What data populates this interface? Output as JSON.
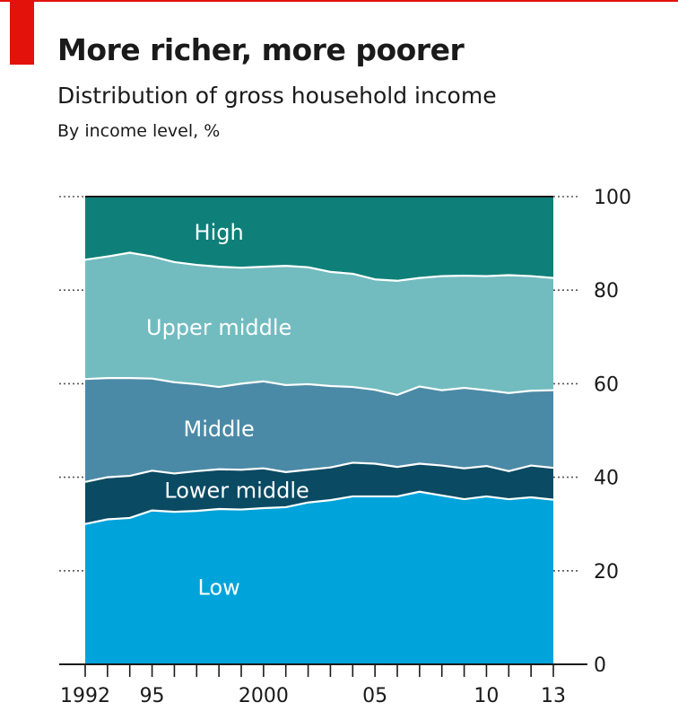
{
  "header": {
    "title": "More richer, more poorer",
    "subtitle": "Distribution of gross household income",
    "unit_note": "By income level, %"
  },
  "colors": {
    "accent_red": "#e3120b",
    "low": "#00a3da",
    "lower_middle": "#0a4a63",
    "middle": "#4b8aa6",
    "upper_middle": "#72bcc0",
    "high": "#0e8079"
  },
  "chart_data": {
    "type": "area",
    "stacked": true,
    "title": "More richer, more poorer",
    "subtitle": "Distribution of gross household income",
    "ylabel": "By income level, %",
    "ylim": [
      0,
      100
    ],
    "yticks": [
      0,
      20,
      40,
      60,
      80,
      100
    ],
    "xlim": [
      1992,
      2013
    ],
    "x": [
      1992,
      1993,
      1994,
      1995,
      1996,
      1997,
      1998,
      1999,
      2000,
      2001,
      2002,
      2003,
      2004,
      2005,
      2006,
      2007,
      2008,
      2009,
      2010,
      2011,
      2012,
      2013
    ],
    "xtick_labels": [
      {
        "x": 1992,
        "label": "1992"
      },
      {
        "x": 1995,
        "label": "95"
      },
      {
        "x": 2000,
        "label": "2000"
      },
      {
        "x": 2005,
        "label": "05"
      },
      {
        "x": 2010,
        "label": "10"
      },
      {
        "x": 2013,
        "label": "13"
      }
    ],
    "series": [
      {
        "name": "Low",
        "color_key": "low",
        "values": [
          30.0,
          31.0,
          31.3,
          32.9,
          32.6,
          32.8,
          33.2,
          33.1,
          33.4,
          33.6,
          34.6,
          35.1,
          35.9,
          35.9,
          35.9,
          36.9,
          36.1,
          35.3,
          35.9,
          35.3,
          35.7,
          35.2
        ]
      },
      {
        "name": "Lower middle",
        "color_key": "lower_middle",
        "values": [
          9.0,
          9.0,
          9.0,
          8.5,
          8.2,
          8.5,
          8.5,
          8.5,
          8.5,
          7.5,
          7.0,
          7.0,
          7.2,
          7.0,
          6.3,
          6.0,
          6.4,
          6.6,
          6.5,
          6.0,
          6.8,
          6.8
        ]
      },
      {
        "name": "Middle",
        "color_key": "middle",
        "values": [
          22.0,
          21.2,
          20.9,
          19.7,
          19.5,
          18.6,
          17.6,
          18.4,
          18.6,
          18.6,
          18.3,
          17.4,
          16.2,
          15.8,
          15.4,
          16.5,
          16.1,
          17.2,
          16.2,
          16.7,
          16.0,
          16.6
        ]
      },
      {
        "name": "Upper middle",
        "color_key": "upper_middle",
        "values": [
          25.5,
          26.0,
          26.8,
          26.1,
          25.7,
          25.5,
          25.7,
          24.8,
          24.5,
          25.5,
          25.0,
          24.4,
          24.2,
          23.6,
          24.4,
          23.2,
          24.4,
          24.0,
          24.4,
          25.2,
          24.5,
          24.0
        ]
      },
      {
        "name": "High",
        "color_key": "high",
        "values": [
          13.5,
          12.8,
          12.0,
          12.8,
          14.0,
          14.6,
          15.0,
          15.2,
          15.0,
          14.8,
          15.1,
          16.1,
          16.5,
          17.7,
          18.0,
          17.4,
          17.0,
          16.9,
          17.0,
          16.8,
          17.0,
          17.4
        ]
      }
    ]
  }
}
